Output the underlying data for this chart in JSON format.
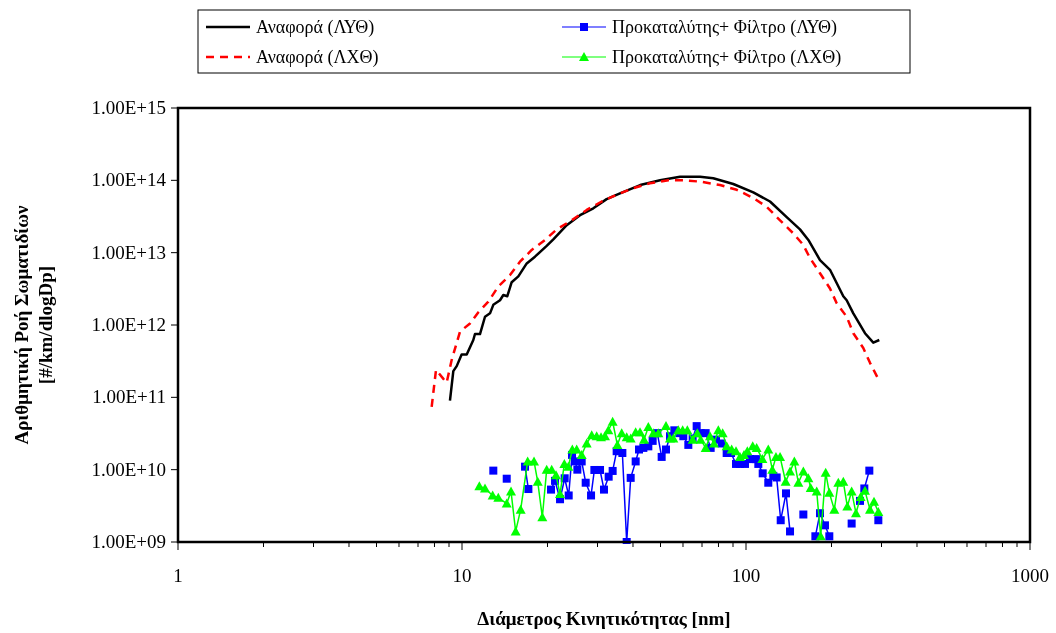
{
  "chart_data": {
    "type": "line",
    "xlabel": "Διάμετρος Κινητικότητας [nm]",
    "ylabel": "Αριθμητική Ροή Σωματιδίων\n[#/km/dlogDp]",
    "log": "xy",
    "grid": false,
    "legend": "top",
    "xlim": [
      1,
      1000
    ],
    "xticks": [
      1,
      {
        "value": 2,
        "label": null
      },
      {
        "value": 3,
        "label": null
      },
      {
        "value": 4,
        "label": null
      },
      {
        "value": 5,
        "label": null
      },
      {
        "value": 6,
        "label": null
      },
      {
        "value": 7,
        "label": null
      },
      {
        "value": 8,
        "label": null
      },
      {
        "value": 9,
        "label": null
      },
      10,
      {
        "value": 20,
        "label": null
      },
      {
        "value": 30,
        "label": null
      },
      {
        "value": 40,
        "label": null
      },
      {
        "value": 50,
        "label": null
      },
      {
        "value": 60,
        "label": null
      },
      {
        "value": 70,
        "label": null
      },
      {
        "value": 80,
        "label": null
      },
      {
        "value": 90,
        "label": null
      },
      100,
      {
        "value": 200,
        "label": null
      },
      {
        "value": 300,
        "label": null
      },
      {
        "value": 400,
        "label": null
      },
      {
        "value": 500,
        "label": null
      },
      {
        "value": 600,
        "label": null
      },
      {
        "value": 700,
        "label": null
      },
      {
        "value": 800,
        "label": null
      },
      {
        "value": 900,
        "label": null
      },
      1000
    ],
    "ylim": [
      1000000000.0,
      1000000000000000.0
    ],
    "yticks": [
      {
        "value": 1000000000.0,
        "label": "1.00E+09"
      },
      {
        "value": 10000000000.0,
        "label": "1.00E+10"
      },
      {
        "value": 100000000000.0,
        "label": "1.00E+11"
      },
      {
        "value": 1000000000000.0,
        "label": "1.00E+12"
      },
      {
        "value": 10000000000000.0,
        "label": "1.00E+13"
      },
      {
        "value": 100000000000000.0,
        "label": "1.00E+14"
      },
      {
        "value": 1000000000000000.0,
        "label": "1.00E+15"
      }
    ],
    "series": [
      {
        "name": "Αναφορά (ΛΥΘ)",
        "color": "#000000",
        "marker": "none",
        "line_style": "solid",
        "x": [
          9.07,
          9.32,
          9.58,
          9.97,
          10.39,
          10.96,
          11.11,
          11.57,
          12.05,
          12.55,
          12.89,
          13.61,
          13.98,
          14.44,
          14.96,
          15.79,
          16.9,
          18.07,
          19.87,
          20.97,
          23.37,
          26.04,
          29.0,
          32.3,
          36.0,
          42.4,
          49.8,
          58.6,
          68.9,
          76.7,
          90.2,
          106.1,
          121.5,
          139.1,
          154.9,
          165.8,
          182.2,
          197.6,
          220.1,
          226.2,
          238.7,
          262.4,
          280.7,
          294.7
        ],
        "values": [
          90000000000.0,
          230000000000.0,
          270000000000.0,
          390000000000.0,
          390000000000.0,
          620000000000.0,
          750000000000.0,
          750000000000.0,
          1300000000000.0,
          1450000000000.0,
          1900000000000.0,
          2200000000000.0,
          2600000000000.0,
          2500000000000.0,
          3900000000000.0,
          4700000000000.0,
          7100000000000.0,
          8800000000000.0,
          12400000000000.0,
          15300000000000.0,
          24000000000000.0,
          33000000000000.0,
          41000000000000.0,
          55000000000000.0,
          66000000000000.0,
          86000000000000.0,
          100000000000000.0,
          112000000000000.0,
          112000000000000.0,
          107000000000000.0,
          89000000000000.0,
          68000000000000.0,
          51000000000000.0,
          31000000000000.0,
          21000000000000.0,
          15000000000000.0,
          7900000000000.0,
          5800000000000.0,
          2500000000000.0,
          2200000000000.0,
          1450000000000.0,
          770000000000.0,
          570000000000.0,
          620000000000.0
        ]
      },
      {
        "name": "Αναφορά (ΛΧΘ)",
        "color": "#ff0000",
        "marker": "none",
        "line_style": "dashed",
        "x": [
          7.82,
          8.1,
          8.6,
          8.83,
          9.2,
          9.84,
          10.67,
          11.42,
          12.38,
          13.42,
          14.76,
          16.0,
          17.6,
          19.61,
          21.56,
          24.34,
          27.49,
          31.04,
          36.0,
          40.1,
          45.9,
          53.3,
          60.1,
          68.9,
          81.0,
          92.8,
          106.1,
          118.3,
          131.8,
          146.7,
          159.1,
          168.1,
          182.2,
          197.6,
          208.6,
          226.2,
          238.7,
          258.8,
          273.3,
          290.0
        ],
        "values": [
          74000000000.0,
          240000000000.0,
          180000000000.0,
          160000000000.0,
          330000000000.0,
          810000000000.0,
          1050000000000.0,
          1500000000000.0,
          2100000000000.0,
          3400000000000.0,
          4900000000000.0,
          7500000000000.0,
          10900000000000.0,
          15000000000000.0,
          21000000000000.0,
          28000000000000.0,
          39000000000000.0,
          51000000000000.0,
          66000000000000.0,
          78000000000000.0,
          91000000000000.0,
          100000000000000.0,
          100000000000000.0,
          96000000000000.0,
          86000000000000.0,
          74000000000000.0,
          57000000000000.0,
          43000000000000.0,
          28000000000000.0,
          18500000000000.0,
          12800000000000.0,
          8400000000000.0,
          5200000000000.0,
          3200000000000.0,
          2000000000000.0,
          1300000000000.0,
          770000000000.0,
          480000000000.0,
          300000000000.0,
          190000000000.0
        ]
      },
      {
        "name": "Προκαταλύτης+ Φίλτρο (ΛΥΘ)",
        "color": "#0000ff",
        "marker": "square",
        "line_style": "solid",
        "x": [
          12.89,
          13.6,
          14.37,
          15.5,
          16.67,
          17.13,
          19.0,
          20.58,
          21.26,
          22.14,
          22.99,
          23.75,
          24.4,
          25.0,
          25.48,
          26.39,
          27.26,
          28.47,
          29.25,
          30.62,
          31.62,
          32.84,
          33.92,
          35.04,
          36.7,
          38.01,
          39.26,
          40.88,
          42.0,
          43.51,
          45.3,
          46.92,
          48.73,
          50.47,
          52.27,
          54.0,
          55.93,
          58.24,
          60.16,
          62.65,
          64.88,
          67.03,
          69.24,
          72.11,
          75.09,
          78.41,
          82.09,
          85.49,
          88.55,
          92.22,
          95.25,
          99.2,
          103.3,
          108.4,
          110.5,
          114.5,
          119.8,
          124.8,
          128.2,
          132.5,
          138.3,
          142.9,
          150.0,
          159.2,
          168.0,
          175.5,
          182.2,
          189.7,
          196.5,
          215.0,
          235.5,
          245.0,
          252.0,
          261.0,
          271.8,
          280.0,
          292.4
        ],
        "values": [
          9700000000.0,
          null,
          7500000000.0,
          null,
          11000000000.0,
          5400000000.0,
          null,
          5300000000.0,
          7000000000.0,
          3900000000.0,
          7600000000.0,
          4400000000.0,
          16000000000.0,
          13000000000.0,
          10000000000.0,
          13000000000.0,
          6600000000.0,
          4400000000.0,
          9900000000.0,
          9900000000.0,
          5300000000.0,
          8000000000.0,
          9600000000.0,
          18000000000.0,
          17000000000.0,
          1000000000.0,
          7700000000.0,
          13000000000.0,
          19000000000.0,
          20000000000.0,
          21000000000.0,
          25000000000.0,
          32000000000.0,
          15000000000.0,
          19000000000.0,
          29000000000.0,
          35000000000.0,
          32000000000.0,
          29000000000.0,
          22000000000.0,
          27000000000.0,
          40000000000.0,
          32000000000.0,
          32000000000.0,
          20000000000.0,
          26000000000.0,
          23000000000.0,
          17000000000.0,
          17000000000.0,
          12000000000.0,
          12000000000.0,
          12000000000.0,
          14000000000.0,
          14000000000.0,
          12000000000.0,
          8900000000.0,
          6600000000.0,
          8200000000.0,
          7800000000.0,
          2000000000.0,
          4700000000.0,
          1400000000.0,
          null,
          2400000000.0,
          null,
          1200000000.0,
          2500000000.0,
          1700000000.0,
          1200000000.0,
          null,
          1800000000.0,
          null,
          3700000000.0,
          5500000000.0,
          9700000000.0,
          null,
          2000000000.0
        ]
      },
      {
        "name": "Προκαταλύτης+ Φίλτρο (ΛΧΘ)",
        "color": "#00ff00",
        "marker": "triangle",
        "line_style": "solid",
        "x": [
          11.51,
          12.05,
          12.82,
          13.42,
          14.37,
          14.88,
          15.45,
          16.09,
          17.03,
          17.93,
          18.48,
          19.18,
          19.87,
          20.69,
          21.43,
          22.14,
          22.93,
          23.68,
          24.46,
          25.34,
          26.39,
          27.48,
          28.62,
          29.8,
          30.87,
          31.88,
          32.75,
          33.92,
          35.24,
          36.5,
          38.01,
          39.26,
          40.88,
          42.35,
          43.74,
          45.3,
          47.17,
          49.12,
          52.27,
          54.0,
          55.48,
          57.77,
          59.84,
          62.14,
          64.88,
          67.4,
          69.24,
          72.11,
          74.68,
          77.14,
          79.9,
          82.76,
          85.49,
          89.03,
          92.22,
          95.25,
          98.4,
          101.1,
          105.6,
          109.0,
          114.2,
          119.8,
          123.8,
          127.5,
          131.8,
          137.9,
          142.9,
          148.0,
          152.9,
          159.2,
          165.8,
          169.0,
          177.4,
          183.2,
          190.8,
          196.5,
          204.6,
          211.4,
          220.1,
          227.4,
          235.5,
          243.9,
          253.3,
          262.4,
          273.3,
          282.3,
          292.4
        ],
        "values": [
          5900000000.0,
          5500000000.0,
          4400000000.0,
          4100000000.0,
          3400000000.0,
          5000000000.0,
          1400000000.0,
          2800000000.0,
          13000000000.0,
          13000000000.0,
          6800000000.0,
          2200000000.0,
          10000000000.0,
          10000000000.0,
          8400000000.0,
          4600000000.0,
          12000000000.0,
          11000000000.0,
          19000000000.0,
          19000000000.0,
          16000000000.0,
          23000000000.0,
          30000000000.0,
          29000000000.0,
          28000000000.0,
          29000000000.0,
          35000000000.0,
          46000000000.0,
          22000000000.0,
          32000000000.0,
          28000000000.0,
          27000000000.0,
          33000000000.0,
          33000000000.0,
          26000000000.0,
          39000000000.0,
          32000000000.0,
          32000000000.0,
          40000000000.0,
          27000000000.0,
          27000000000.0,
          35000000000.0,
          35000000000.0,
          35000000000.0,
          26000000000.0,
          32000000000.0,
          26000000000.0,
          20000000000.0,
          29000000000.0,
          23000000000.0,
          35000000000.0,
          32000000000.0,
          21000000000.0,
          19000000000.0,
          18000000000.0,
          15000000000.0,
          16000000000.0,
          18000000000.0,
          21000000000.0,
          20000000000.0,
          14000000000.0,
          19000000000.0,
          10000000000.0,
          15000000000.0,
          15000000000.0,
          6800000000.0,
          9400000000.0,
          13000000000.0,
          6600000000.0,
          9400000000.0,
          7600000000.0,
          5600000000.0,
          5000000000.0,
          1200000000.0,
          9100000000.0,
          4800000000.0,
          2800000000.0,
          6600000000.0,
          6800000000.0,
          3100000000.0,
          5000000000.0,
          2500000000.0,
          4200000000.0,
          5100000000.0,
          2800000000.0,
          3600000000.0,
          2600000000.0
        ]
      }
    ]
  }
}
